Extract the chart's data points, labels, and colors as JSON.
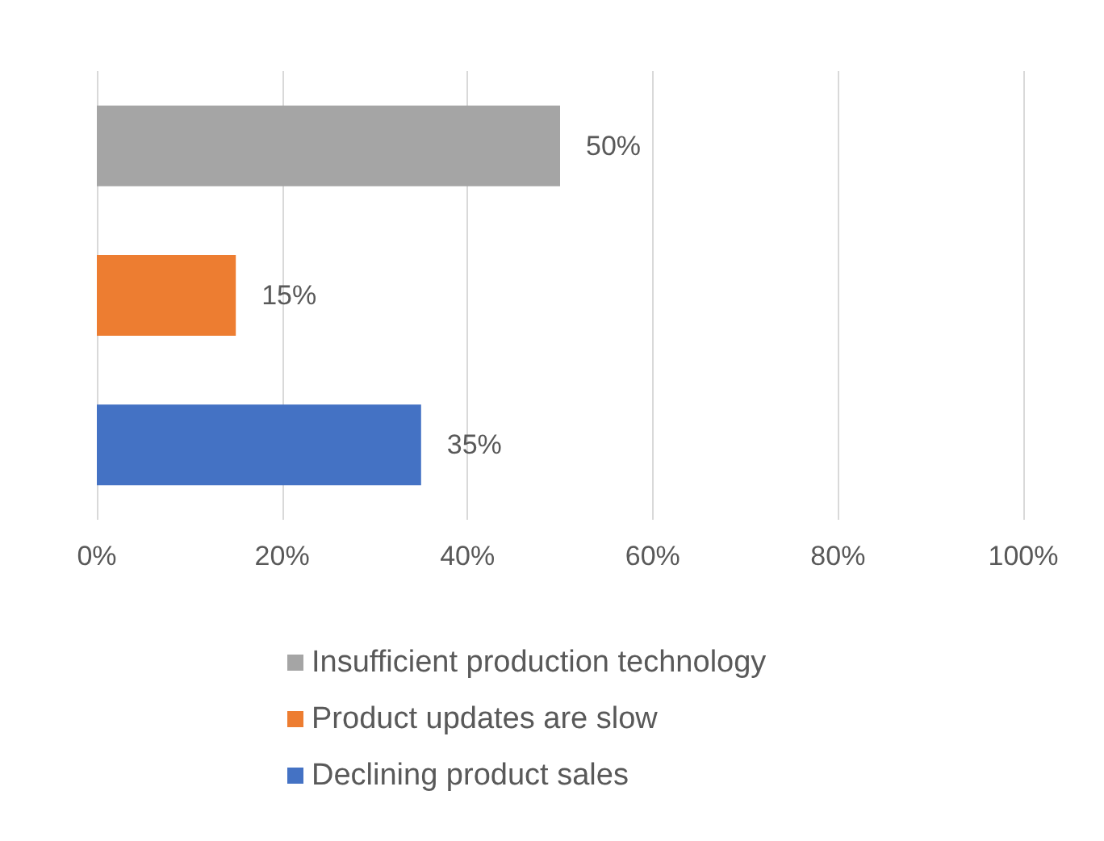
{
  "chart_data": {
    "type": "bar",
    "orientation": "horizontal",
    "stacked": true,
    "categories": [
      null,
      null,
      null
    ],
    "series": [
      {
        "name": "Insufficient production technology",
        "color": "#a5a5a5",
        "values": [
          50,
          null,
          null
        ],
        "value_labels": [
          "50%",
          null,
          null
        ]
      },
      {
        "name": "Product updates are slow",
        "color": "#ed7d31",
        "values": [
          null,
          15,
          null
        ],
        "value_labels": [
          null,
          "15%",
          null
        ]
      },
      {
        "name": "Declining product sales",
        "color": "#4472c4",
        "values": [
          null,
          null,
          35
        ],
        "value_labels": [
          null,
          null,
          "35%"
        ]
      }
    ],
    "xlim": [
      0,
      100
    ],
    "xticks": [
      {
        "value": 0,
        "label": "0%"
      },
      {
        "value": 20,
        "label": "20%"
      },
      {
        "value": 40,
        "label": "40%"
      },
      {
        "value": 60,
        "label": "60%"
      },
      {
        "value": 80,
        "label": "80%"
      },
      {
        "value": 100,
        "label": "100%"
      }
    ],
    "grid": "x",
    "legend": "bottom"
  }
}
